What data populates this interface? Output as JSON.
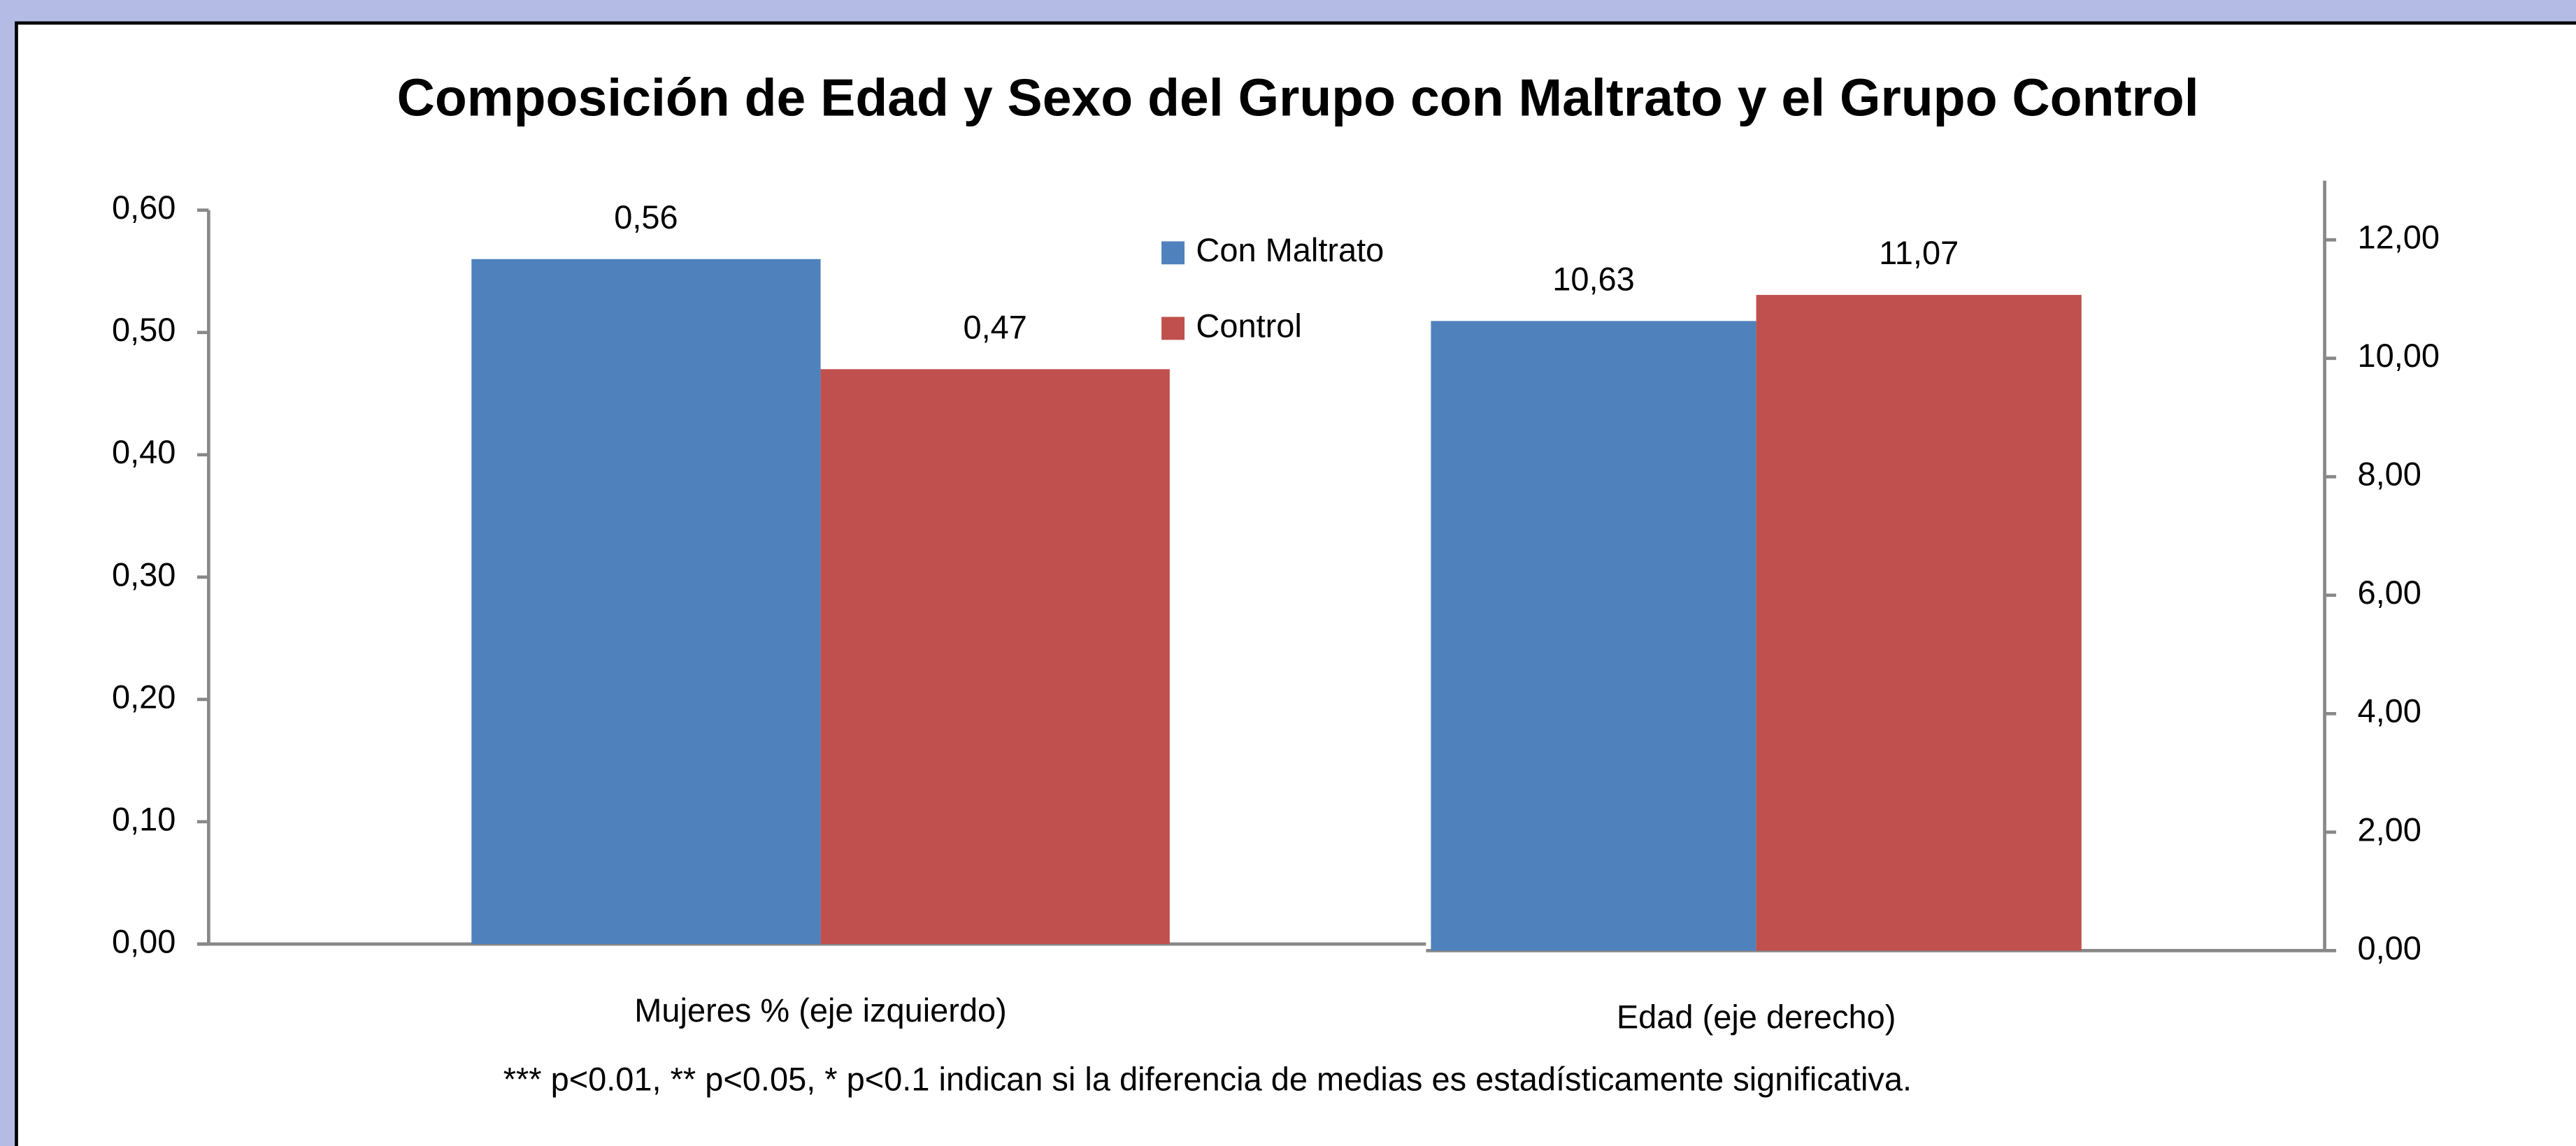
{
  "chart_data": {
    "type": "bar",
    "title": "Composición de Edad y Sexo del Grupo con Maltrato y el Grupo Control",
    "categories": [
      "Mujeres % (eje izquierdo)",
      "Edad (eje derecho)"
    ],
    "category_axis": [
      "y",
      "y2"
    ],
    "series": [
      {
        "name": "Con Maltrato",
        "color": "#4f81bd",
        "values": [
          0.56,
          10.63
        ],
        "value_labels": [
          "0,56",
          "10,63"
        ]
      },
      {
        "name": "Control",
        "color": "#c0504d",
        "values": [
          0.47,
          11.07
        ],
        "value_labels": [
          "0,47",
          "11,07"
        ]
      }
    ],
    "ylim": [
      0,
      0.6
    ],
    "yticks": [
      {
        "value": 0,
        "label": "0,00"
      },
      {
        "value": 0.1,
        "label": "0,10"
      },
      {
        "value": 0.2,
        "label": "0,20"
      },
      {
        "value": 0.3,
        "label": "0,30"
      },
      {
        "value": 0.4,
        "label": "0,40"
      },
      {
        "value": 0.5,
        "label": "0,50"
      },
      {
        "value": 0.6,
        "label": "0,60"
      }
    ],
    "y2lim": [
      0,
      13
    ],
    "y2ticks": [
      {
        "value": 0,
        "label": "0,00"
      },
      {
        "value": 2,
        "label": "2,00"
      },
      {
        "value": 4,
        "label": "4,00"
      },
      {
        "value": 6,
        "label": "6,00"
      },
      {
        "value": 8,
        "label": "8,00"
      },
      {
        "value": 10,
        "label": "10,00"
      },
      {
        "value": 12,
        "label": "12,00"
      }
    ],
    "legend": "top-center",
    "annotation": "*** p<0.01, ** p<0.05, * p<0.1 indican si la diferencia de medias es estadísticamente  significativa."
  }
}
